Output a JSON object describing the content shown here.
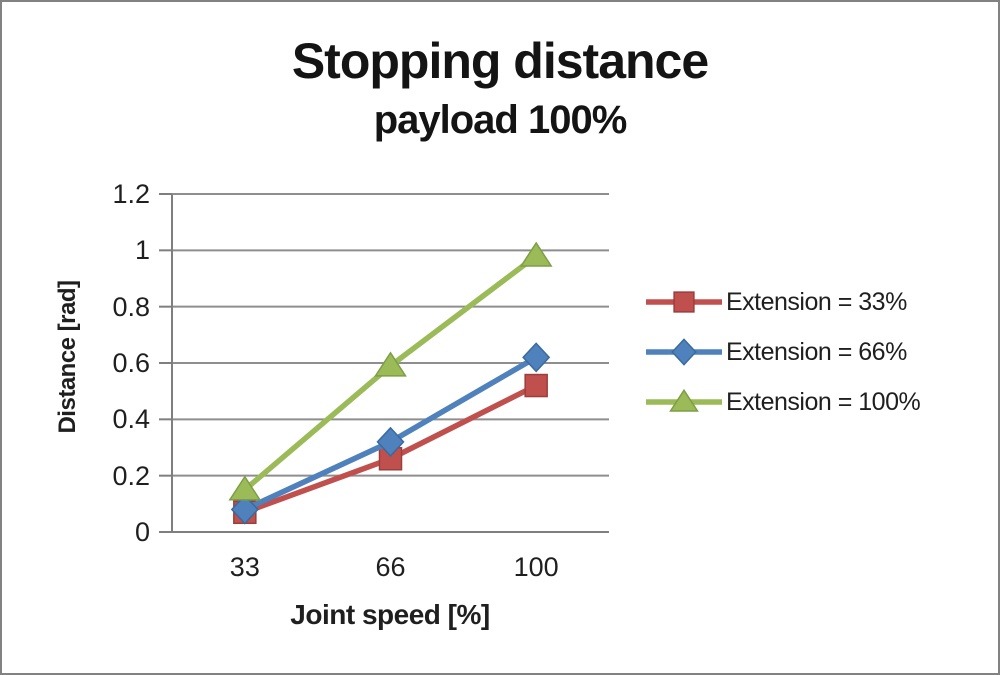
{
  "chart_data": {
    "type": "line",
    "title": "Stopping distance",
    "subtitle": "payload 100%",
    "xlabel": "Joint speed [%]",
    "ylabel": "Distance [rad]",
    "categories": [
      "33",
      "66",
      "100"
    ],
    "yticks": [
      "0",
      "0.2",
      "0.4",
      "0.6",
      "0.8",
      "1",
      "1.2"
    ],
    "ylim": [
      0,
      1.2
    ],
    "grid": "horizontal",
    "legend_position": "right",
    "series": [
      {
        "name": "Extension = 33%",
        "values": [
          0.07,
          0.26,
          0.52
        ],
        "color": "#C0504D",
        "marker_border": "#9C3E3B",
        "marker": "square"
      },
      {
        "name": "Extension = 66%",
        "values": [
          0.08,
          0.32,
          0.62
        ],
        "color": "#4F81BD",
        "marker_border": "#3A6A9E",
        "marker": "diamond"
      },
      {
        "name": "Extension = 100%",
        "values": [
          0.15,
          0.59,
          0.98
        ],
        "color": "#9BBB59",
        "marker_border": "#7E9E45",
        "marker": "triangle"
      }
    ],
    "colors": {
      "gridline": "#8E8E8E",
      "axis": "#7F7F7F",
      "text": "#1F1F1F",
      "title": "#141414",
      "frame_border": "#828282",
      "background": "#FFFFFF"
    }
  }
}
